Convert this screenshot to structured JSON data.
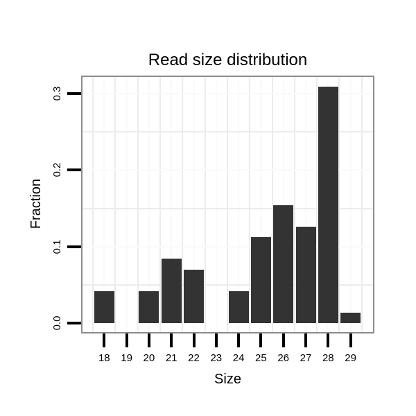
{
  "title": "Read size distribution",
  "x_axis": {
    "label": "Size",
    "tick_labels": [
      "18",
      "19",
      "20",
      "21",
      "22",
      "23",
      "24",
      "25",
      "26",
      "27",
      "28",
      "29"
    ]
  },
  "y_axis": {
    "label": "Fraction",
    "tick_labels": [
      "0.0",
      "0.1",
      "0.2",
      "0.3"
    ]
  },
  "chart_data": {
    "type": "bar",
    "title": "Read size distribution",
    "xlabel": "Size",
    "ylabel": "Fraction",
    "categories": [
      18,
      19,
      20,
      21,
      22,
      23,
      24,
      25,
      26,
      27,
      28,
      29
    ],
    "values": [
      0.042,
      0,
      0.042,
      0.084,
      0.07,
      0,
      0.042,
      0.112,
      0.154,
      0.126,
      0.309,
      0.014
    ],
    "y_ticks": [
      0.0,
      0.1,
      0.2,
      0.3
    ],
    "y_tick_labels": [
      "0.0",
      "0.1",
      "0.2",
      "0.3"
    ],
    "y_minor_gridlines": [
      0.05,
      0.15,
      0.25
    ],
    "ylim": [
      0,
      0.322
    ],
    "grid": "on",
    "legend_position": "none",
    "bar_color": "#333333"
  },
  "colors": {
    "bar": "#333333",
    "panel_border": "#8c8c8c",
    "grid_minor": "#ececec",
    "grid_major": "#fafafa",
    "tick": "#000000",
    "text": "#000000",
    "background": "#ffffff"
  }
}
